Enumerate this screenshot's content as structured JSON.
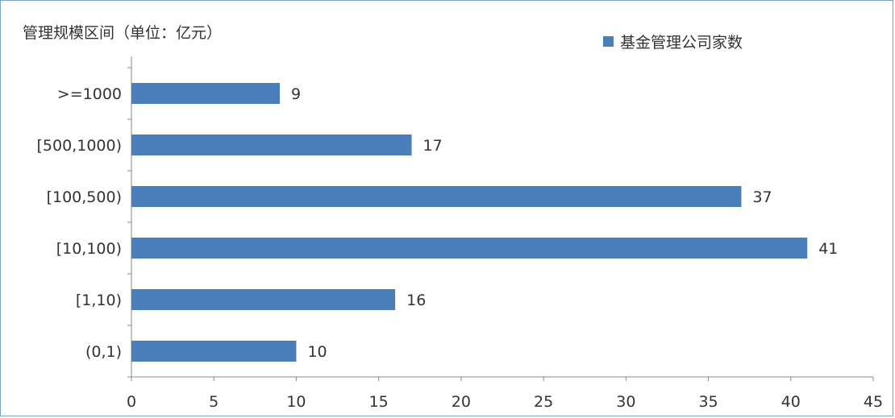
{
  "chart_data": {
    "type": "bar",
    "orientation": "horizontal",
    "title": "",
    "ylabel": "管理规模区间（单位：亿元）",
    "xlabel": "",
    "categories": [
      ">=1000",
      "[500,1000)",
      "[100,500)",
      "[10,100)",
      "[1,10)",
      "(0,1)"
    ],
    "series": [
      {
        "name": "基金管理公司家数",
        "values": [
          9,
          17,
          37,
          41,
          16,
          10
        ]
      }
    ],
    "xlim": [
      0,
      45
    ],
    "xticks": [
      0,
      5,
      10,
      15,
      20,
      25,
      30,
      35,
      40,
      45
    ],
    "grid": false,
    "legend_position": "top-right",
    "colors": {
      "bar": "#4a7ebb",
      "axis": "#888888",
      "text": "#333333"
    }
  }
}
